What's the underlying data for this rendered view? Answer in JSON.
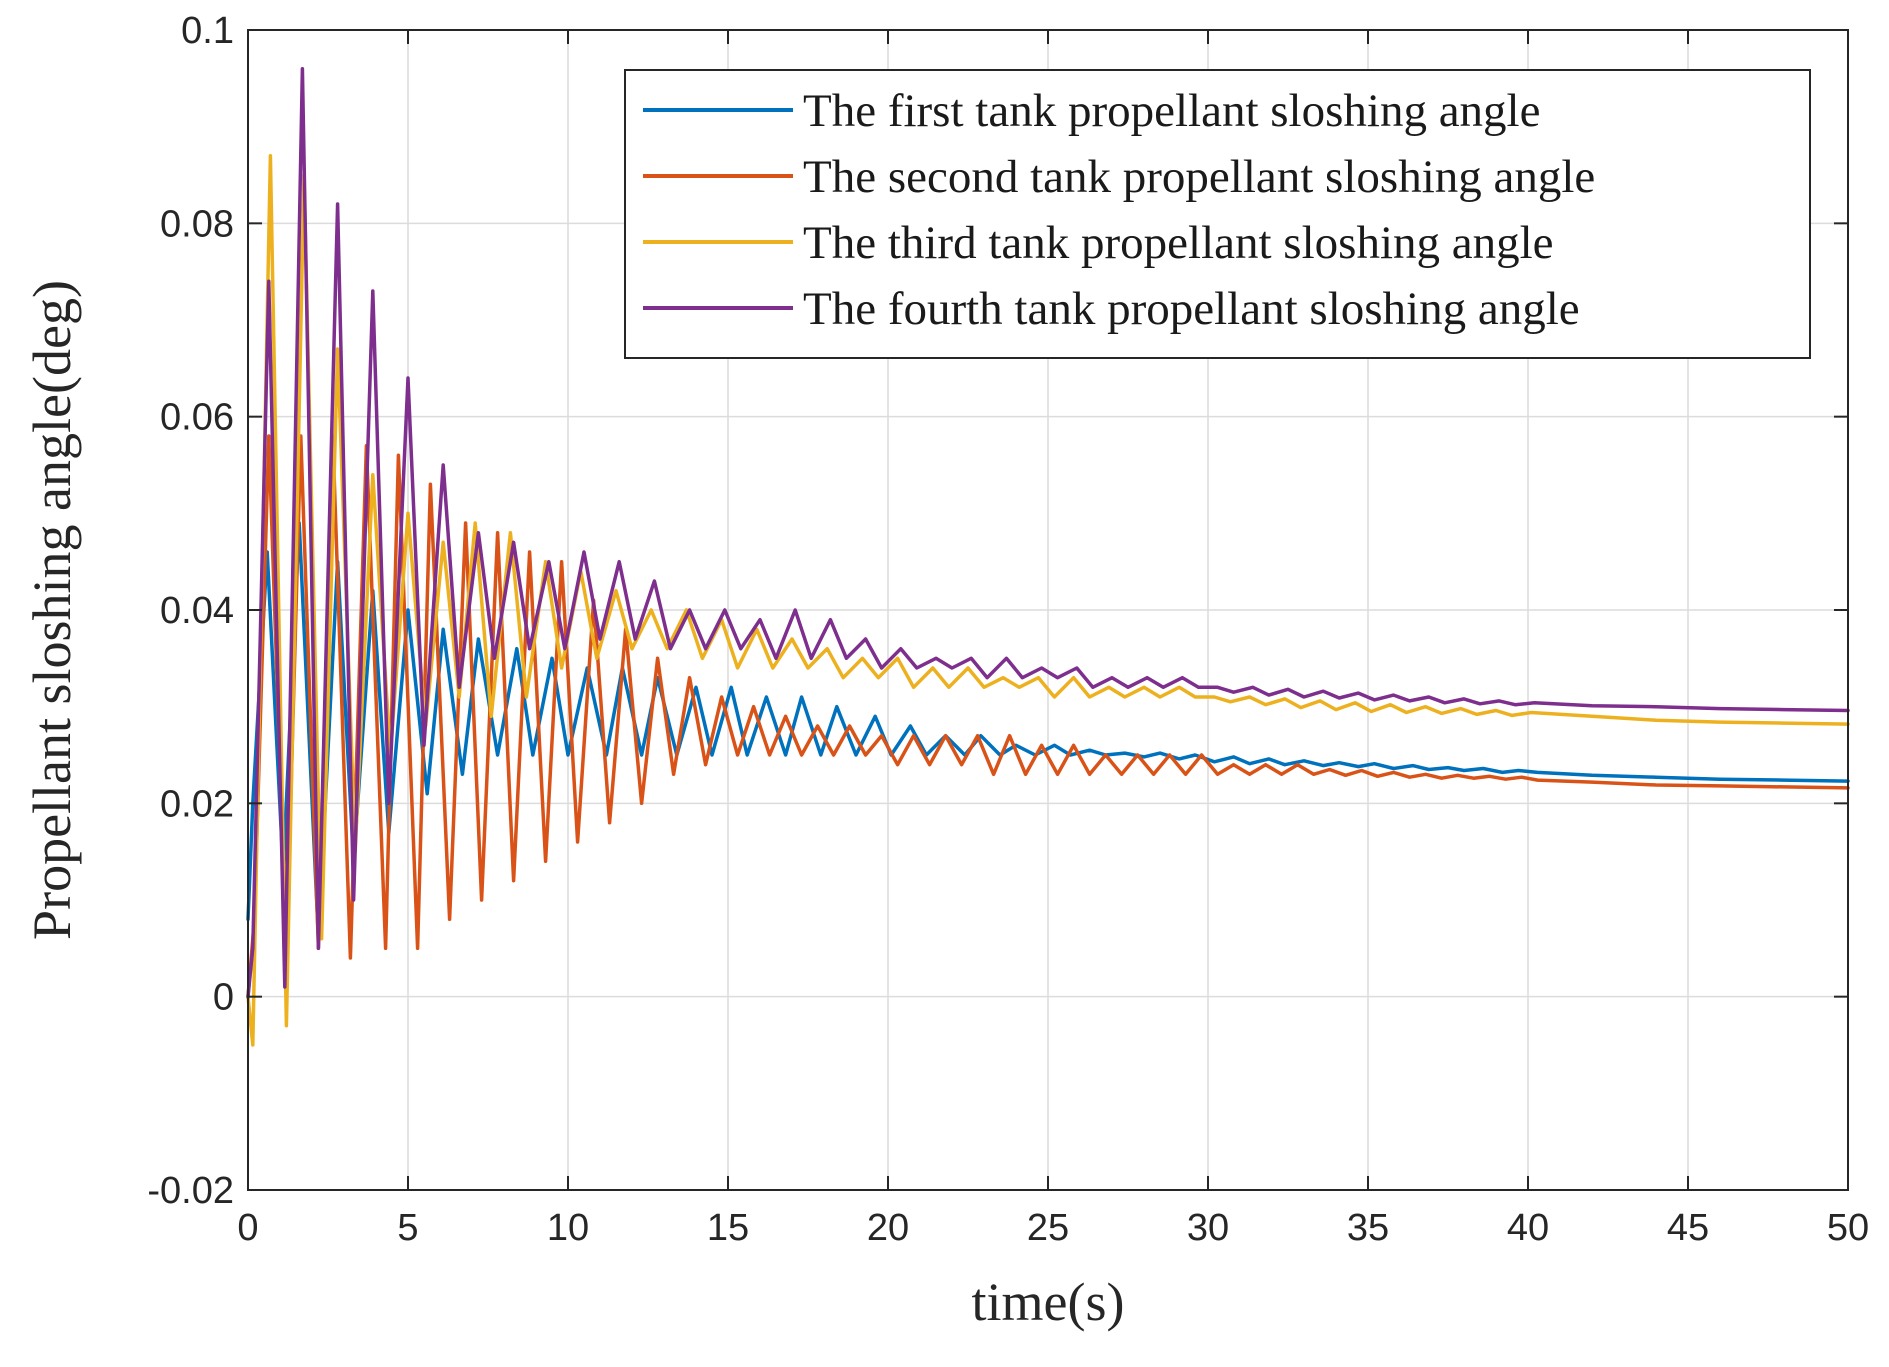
{
  "chart_data": {
    "type": "line",
    "title": "",
    "xlabel": "time(s)",
    "ylabel": "Propellant sloshing angle(deg)",
    "xlim": [
      0,
      50
    ],
    "ylim": [
      -0.02,
      0.1
    ],
    "xticks": [
      0,
      5,
      10,
      15,
      20,
      25,
      30,
      35,
      40,
      45,
      50
    ],
    "xtick_labels": [
      "0",
      "5",
      "10",
      "15",
      "20",
      "25",
      "30",
      "35",
      "40",
      "45",
      "50"
    ],
    "yticks": [
      -0.02,
      0,
      0.02,
      0.04,
      0.06,
      0.08,
      0.1
    ],
    "ytick_labels": [
      "-0.02",
      "0",
      "0.02",
      "0.04",
      "0.06",
      "0.08",
      "0.1"
    ],
    "grid": true,
    "legend_position": "top-right",
    "series": [
      {
        "name": "The first tank propellant sloshing angle",
        "color": "#0072BD",
        "x": [
          0,
          0.15,
          0.6,
          1.1,
          1.6,
          2.2,
          2.8,
          3.3,
          3.9,
          4.4,
          5.0,
          5.6,
          6.1,
          6.7,
          7.2,
          7.8,
          8.4,
          8.9,
          9.5,
          10.0,
          10.6,
          11.2,
          11.7,
          12.3,
          12.8,
          13.4,
          14.0,
          14.5,
          15.1,
          15.6,
          16.2,
          16.8,
          17.3,
          17.9,
          18.4,
          19.0,
          19.6,
          20.1,
          20.7,
          21.2,
          21.8,
          22.4,
          22.9,
          23.5,
          24.0,
          24.6,
          25.2,
          25.7,
          26.3,
          26.8,
          27.4,
          28.0,
          28.5,
          29.1,
          29.6,
          30.2,
          30.8,
          31.3,
          31.9,
          32.4,
          33.0,
          33.6,
          34.1,
          34.7,
          35.2,
          35.8,
          36.4,
          36.9,
          37.5,
          38.0,
          38.6,
          39.2,
          39.7,
          40.3,
          42,
          44,
          46,
          48,
          50
        ],
        "y": [
          0.008,
          0.02,
          0.046,
          0.013,
          0.049,
          0.006,
          0.045,
          0.014,
          0.042,
          0.017,
          0.04,
          0.021,
          0.038,
          0.023,
          0.037,
          0.025,
          0.036,
          0.025,
          0.035,
          0.025,
          0.034,
          0.025,
          0.034,
          0.025,
          0.033,
          0.025,
          0.032,
          0.025,
          0.032,
          0.025,
          0.031,
          0.025,
          0.031,
          0.025,
          0.03,
          0.025,
          0.029,
          0.025,
          0.028,
          0.025,
          0.027,
          0.025,
          0.027,
          0.025,
          0.026,
          0.025,
          0.026,
          0.025,
          0.0255,
          0.025,
          0.0252,
          0.0248,
          0.0252,
          0.0246,
          0.025,
          0.0243,
          0.0248,
          0.0241,
          0.0246,
          0.024,
          0.0244,
          0.0239,
          0.0242,
          0.0238,
          0.0241,
          0.0236,
          0.0239,
          0.0235,
          0.0237,
          0.0234,
          0.0236,
          0.0232,
          0.0234,
          0.0232,
          0.0229,
          0.0227,
          0.0225,
          0.0224,
          0.0223
        ]
      },
      {
        "name": "The second tank propellant sloshing angle",
        "color": "#D95319",
        "x": [
          0,
          0.2,
          0.65,
          1.2,
          1.65,
          2.2,
          2.65,
          3.2,
          3.7,
          4.3,
          4.7,
          5.3,
          5.7,
          6.3,
          6.8,
          7.3,
          7.8,
          8.3,
          8.8,
          9.3,
          9.8,
          10.3,
          10.8,
          11.3,
          11.8,
          12.3,
          12.8,
          13.3,
          13.8,
          14.3,
          14.8,
          15.3,
          15.8,
          16.3,
          16.8,
          17.3,
          17.8,
          18.3,
          18.8,
          19.3,
          19.8,
          20.3,
          20.8,
          21.3,
          21.8,
          22.3,
          22.8,
          23.3,
          23.8,
          24.3,
          24.8,
          25.3,
          25.8,
          26.3,
          26.8,
          27.3,
          27.8,
          28.3,
          28.8,
          29.3,
          29.8,
          30.3,
          30.8,
          31.3,
          31.8,
          32.3,
          32.8,
          33.3,
          33.8,
          34.3,
          34.8,
          35.3,
          35.8,
          36.3,
          36.8,
          37.3,
          37.8,
          38.3,
          38.8,
          39.3,
          39.8,
          40.3,
          42,
          44,
          46,
          48,
          50
        ],
        "y": [
          0.0,
          0.008,
          0.058,
          0.004,
          0.058,
          0.005,
          0.058,
          0.004,
          0.057,
          0.005,
          0.056,
          0.005,
          0.053,
          0.008,
          0.049,
          0.01,
          0.048,
          0.012,
          0.046,
          0.014,
          0.045,
          0.016,
          0.041,
          0.018,
          0.038,
          0.02,
          0.035,
          0.023,
          0.033,
          0.024,
          0.031,
          0.025,
          0.03,
          0.025,
          0.029,
          0.025,
          0.028,
          0.025,
          0.028,
          0.025,
          0.027,
          0.024,
          0.027,
          0.024,
          0.027,
          0.024,
          0.027,
          0.023,
          0.027,
          0.023,
          0.026,
          0.023,
          0.026,
          0.023,
          0.025,
          0.023,
          0.025,
          0.023,
          0.025,
          0.023,
          0.025,
          0.023,
          0.024,
          0.023,
          0.024,
          0.023,
          0.024,
          0.023,
          0.0235,
          0.0229,
          0.0234,
          0.0228,
          0.0232,
          0.0227,
          0.023,
          0.0226,
          0.0229,
          0.0226,
          0.0228,
          0.0225,
          0.0227,
          0.0224,
          0.0222,
          0.0219,
          0.0218,
          0.0217,
          0.0216
        ]
      },
      {
        "name": "The third tank propellant sloshing angle",
        "color": "#EDB120",
        "x": [
          0,
          0.15,
          0.7,
          1.2,
          1.75,
          2.3,
          2.8,
          3.35,
          3.9,
          4.45,
          5.0,
          5.55,
          6.1,
          6.6,
          7.1,
          7.6,
          8.2,
          8.7,
          9.3,
          9.8,
          10.4,
          10.9,
          11.5,
          12.0,
          12.6,
          13.1,
          13.7,
          14.2,
          14.8,
          15.3,
          15.9,
          16.4,
          17.0,
          17.5,
          18.1,
          18.6,
          19.2,
          19.7,
          20.3,
          20.8,
          21.4,
          21.9,
          22.5,
          23.0,
          23.6,
          24.1,
          24.7,
          25.2,
          25.8,
          26.3,
          26.9,
          27.4,
          28.0,
          28.5,
          29.1,
          29.6,
          30.2,
          30.7,
          31.3,
          31.8,
          32.4,
          32.9,
          33.5,
          34.0,
          34.6,
          35.1,
          35.7,
          36.2,
          36.8,
          37.3,
          37.9,
          38.4,
          39.0,
          39.5,
          40.1,
          42,
          44,
          46,
          48,
          50
        ],
        "y": [
          0.0,
          -0.005,
          0.087,
          -0.003,
          0.085,
          0.006,
          0.067,
          0.015,
          0.054,
          0.025,
          0.05,
          0.028,
          0.047,
          0.031,
          0.049,
          0.029,
          0.048,
          0.031,
          0.045,
          0.034,
          0.044,
          0.035,
          0.042,
          0.036,
          0.04,
          0.036,
          0.04,
          0.035,
          0.039,
          0.034,
          0.038,
          0.034,
          0.037,
          0.034,
          0.036,
          0.033,
          0.035,
          0.033,
          0.035,
          0.032,
          0.034,
          0.032,
          0.034,
          0.032,
          0.033,
          0.032,
          0.033,
          0.031,
          0.033,
          0.031,
          0.032,
          0.031,
          0.032,
          0.031,
          0.032,
          0.031,
          0.031,
          0.0305,
          0.031,
          0.0302,
          0.0308,
          0.0299,
          0.0306,
          0.0297,
          0.0304,
          0.0295,
          0.0302,
          0.0294,
          0.03,
          0.0293,
          0.0298,
          0.0292,
          0.0296,
          0.0291,
          0.0294,
          0.029,
          0.0286,
          0.0284,
          0.0283,
          0.0282
        ]
      },
      {
        "name": "The fourth tank propellant sloshing angle",
        "color": "#7E2F8E",
        "x": [
          0,
          0.15,
          0.65,
          1.15,
          1.7,
          2.2,
          2.8,
          3.3,
          3.9,
          4.4,
          5.0,
          5.5,
          6.1,
          6.6,
          7.2,
          7.7,
          8.3,
          8.8,
          9.4,
          9.9,
          10.5,
          11.0,
          11.6,
          12.1,
          12.7,
          13.2,
          13.8,
          14.3,
          14.9,
          15.4,
          16.0,
          16.5,
          17.1,
          17.6,
          18.2,
          18.7,
          19.3,
          19.8,
          20.4,
          20.9,
          21.5,
          22.0,
          22.6,
          23.1,
          23.7,
          24.2,
          24.8,
          25.3,
          25.9,
          26.4,
          27.0,
          27.5,
          28.1,
          28.6,
          29.2,
          29.7,
          30.3,
          30.8,
          31.4,
          31.9,
          32.5,
          33.0,
          33.6,
          34.1,
          34.7,
          35.2,
          35.8,
          36.3,
          36.9,
          37.4,
          38.0,
          38.5,
          39.1,
          39.6,
          40.2,
          42,
          44,
          46,
          48,
          50
        ],
        "y": [
          0.0,
          0.005,
          0.074,
          0.001,
          0.096,
          0.005,
          0.082,
          0.01,
          0.073,
          0.02,
          0.064,
          0.026,
          0.055,
          0.032,
          0.048,
          0.035,
          0.047,
          0.036,
          0.045,
          0.036,
          0.046,
          0.037,
          0.045,
          0.037,
          0.043,
          0.036,
          0.04,
          0.036,
          0.04,
          0.036,
          0.039,
          0.035,
          0.04,
          0.035,
          0.039,
          0.035,
          0.037,
          0.034,
          0.036,
          0.034,
          0.035,
          0.034,
          0.035,
          0.033,
          0.035,
          0.033,
          0.034,
          0.033,
          0.034,
          0.032,
          0.033,
          0.032,
          0.033,
          0.032,
          0.033,
          0.032,
          0.032,
          0.0315,
          0.032,
          0.0312,
          0.0318,
          0.031,
          0.0316,
          0.0309,
          0.0314,
          0.0307,
          0.0312,
          0.0306,
          0.031,
          0.0304,
          0.0308,
          0.0303,
          0.0306,
          0.0302,
          0.0304,
          0.0301,
          0.03,
          0.0298,
          0.0297,
          0.0296
        ]
      }
    ]
  }
}
